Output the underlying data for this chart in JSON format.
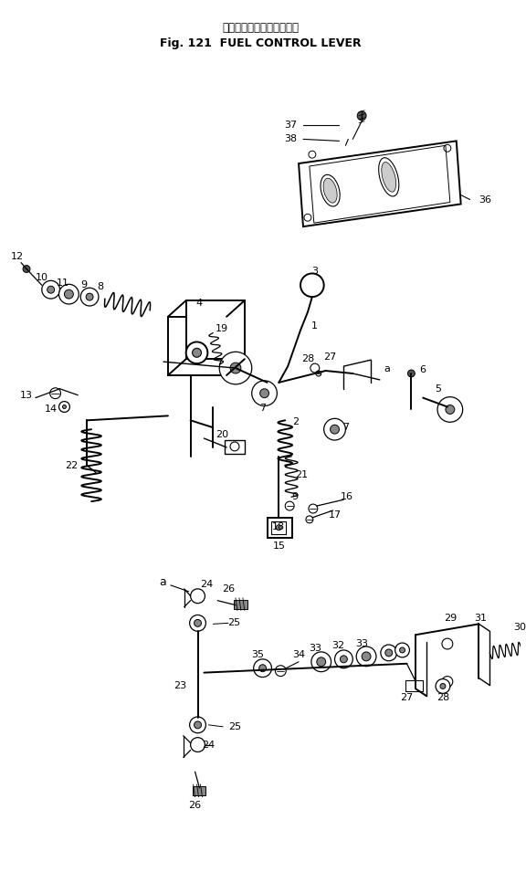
{
  "title_japanese": "フェルコントロールレバー",
  "title_english": "Fig. 121  FUEL CONTROL LEVER",
  "bg_color": "#ffffff",
  "fg_color": "#000000",
  "fig_width": 5.76,
  "fig_height": 9.67
}
